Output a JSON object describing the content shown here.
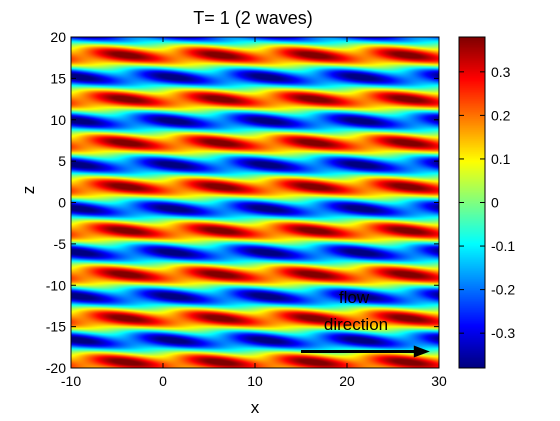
{
  "chart_data": {
    "type": "heatmap",
    "title": "T= 1   (2 waves)",
    "xlabel": "x",
    "ylabel": "z",
    "xlim": [
      -10,
      30
    ],
    "ylim": [
      -20,
      20
    ],
    "x_ticks": [
      "-10",
      "0",
      "10",
      "20",
      "30"
    ],
    "y_ticks": [
      "20",
      "15",
      "10",
      "5",
      "0",
      "-5",
      "-10",
      "-15",
      "-20"
    ],
    "colorbar": {
      "range": [
        -0.38,
        0.38
      ],
      "ticks": [
        "0.3",
        "0.2",
        "0.1",
        "0",
        "-0.1",
        "-0.2",
        "-0.3"
      ],
      "colormap": "jet"
    },
    "field": {
      "description_source": "two superposed traveling waves",
      "z_period": 5.3,
      "x_period": 10.2,
      "amplitude": 0.38
    },
    "annotation": {
      "line1": "flow",
      "line2": "direction",
      "arrow_from": [
        15,
        -18
      ],
      "arrow_to": [
        29,
        -18
      ]
    }
  }
}
